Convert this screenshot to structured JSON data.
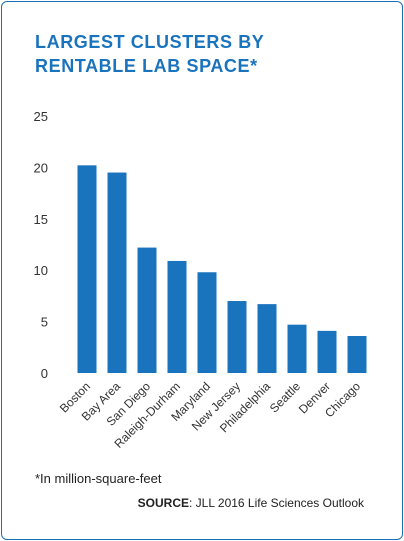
{
  "chart_data": {
    "type": "bar",
    "title_lines": [
      "LARGEST CLUSTERS BY",
      "RENTABLE LAB SPACE*"
    ],
    "xlabel": "",
    "ylabel": "",
    "ylim": [
      0,
      25
    ],
    "yticks": [
      0,
      5,
      10,
      15,
      20,
      25
    ],
    "categories": [
      "Boston",
      "Bay Area",
      "San Diego",
      "Raleigh-Durham",
      "Maryland",
      "New Jersey",
      "Philadelphia",
      "Seattle",
      "Denver",
      "Chicago"
    ],
    "values": [
      20.2,
      19.5,
      12.2,
      10.9,
      9.8,
      7.0,
      6.7,
      4.7,
      4.1,
      3.6
    ],
    "bar_color": "#1a73bd",
    "grid": false,
    "legend": "none"
  },
  "footnote": "*In million-square-feet",
  "source_label": "SOURCE",
  "source_text": ": JLL 2016 Life Sciences Outlook"
}
